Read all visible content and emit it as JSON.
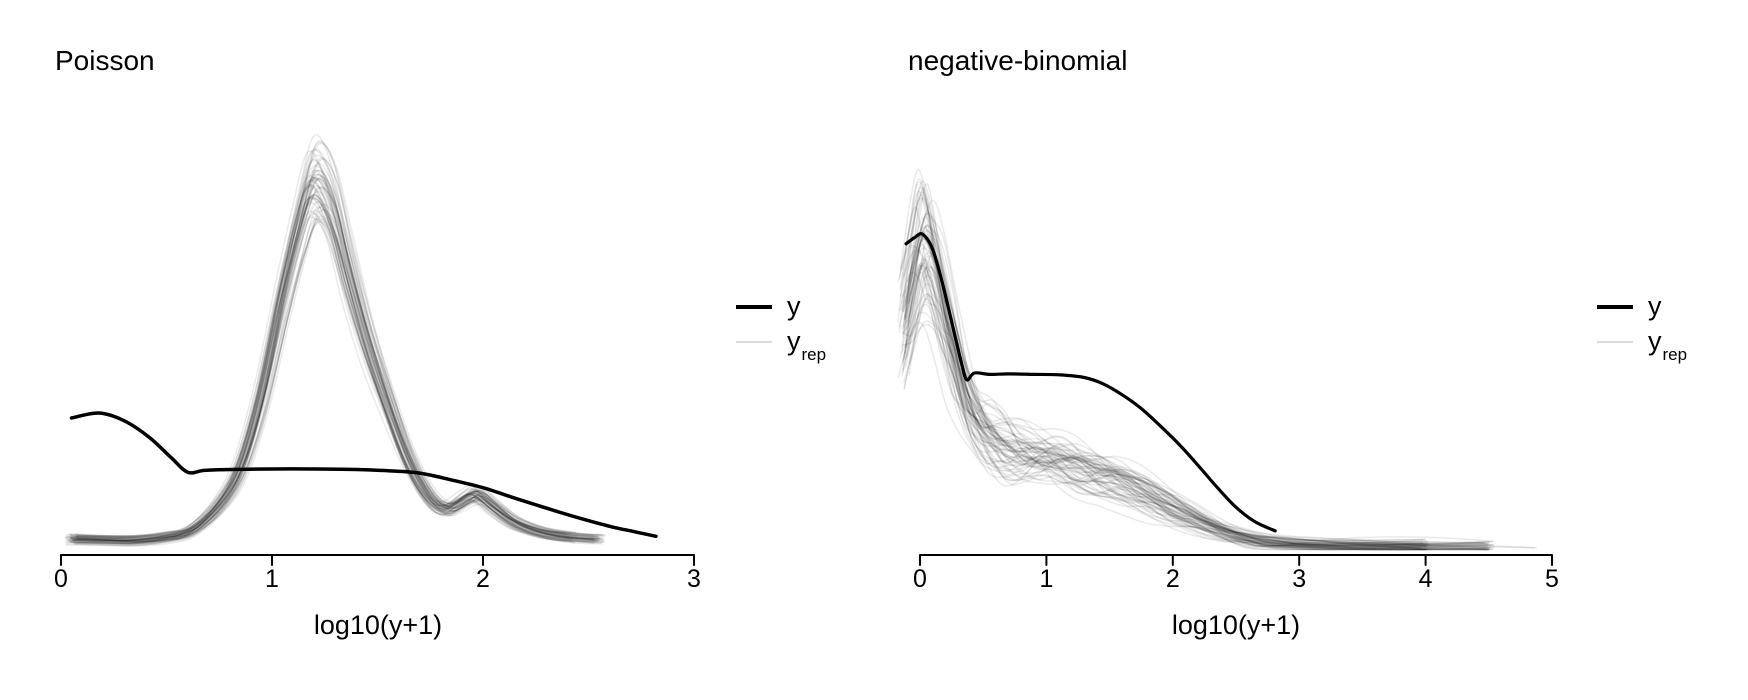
{
  "colors": {
    "y_line": "#000000",
    "yrep_line_alpha": "rgba(0,0,0,0.085)",
    "yrep_legend_swatch": "#d9d9d9",
    "axis": "#000000",
    "background": "#ffffff"
  },
  "legend": {
    "y_label": "y",
    "yrep_main": "y",
    "yrep_sub": "rep"
  },
  "chart_data": [
    {
      "type": "line",
      "panel": "left",
      "title": "Poisson",
      "xlabel": "log10(y+1)",
      "x_range": [
        0,
        3
      ],
      "x_ticks": [
        0,
        1,
        2,
        3
      ],
      "x_tick_labels": [
        "0",
        "1",
        "2",
        "3"
      ],
      "ylim": [
        0,
        1
      ],
      "y_axis_visible": false,
      "grid": false,
      "legend_position": "right",
      "legend_entries": [
        "y",
        "yrep"
      ],
      "series": [
        {
          "name": "y",
          "role": "observed",
          "color": "#000000",
          "width": 3.5,
          "points": [
            [
              0.05,
              0.301
            ],
            [
              0.18,
              0.312
            ],
            [
              0.3,
              0.295
            ],
            [
              0.42,
              0.258
            ],
            [
              0.52,
              0.215
            ],
            [
              0.6,
              0.182
            ],
            [
              0.68,
              0.186
            ],
            [
              0.8,
              0.188
            ],
            [
              1.0,
              0.189
            ],
            [
              1.2,
              0.189
            ],
            [
              1.4,
              0.188
            ],
            [
              1.55,
              0.185
            ],
            [
              1.7,
              0.18
            ],
            [
              1.85,
              0.165
            ],
            [
              2.0,
              0.148
            ],
            [
              2.15,
              0.125
            ],
            [
              2.3,
              0.103
            ],
            [
              2.45,
              0.082
            ],
            [
              2.6,
              0.063
            ],
            [
              2.72,
              0.051
            ],
            [
              2.82,
              0.041
            ]
          ]
        },
        {
          "name": "yrep",
          "role": "replicated",
          "n_draws": 60,
          "color": "rgba(0,0,0,0.085)",
          "width": 1.5,
          "points": [
            [
              0.05,
              0.036
            ],
            [
              0.2,
              0.034
            ],
            [
              0.35,
              0.033
            ],
            [
              0.5,
              0.04
            ],
            [
              0.62,
              0.055
            ],
            [
              0.75,
              0.11
            ],
            [
              0.85,
              0.19
            ],
            [
              0.95,
              0.345
            ],
            [
              1.05,
              0.56
            ],
            [
              1.13,
              0.715
            ],
            [
              1.2,
              0.81
            ],
            [
              1.28,
              0.76
            ],
            [
              1.36,
              0.62
            ],
            [
              1.45,
              0.47
            ],
            [
              1.55,
              0.33
            ],
            [
              1.65,
              0.205
            ],
            [
              1.75,
              0.125
            ],
            [
              1.83,
              0.102
            ],
            [
              1.9,
              0.118
            ],
            [
              1.97,
              0.133
            ],
            [
              2.05,
              0.106
            ],
            [
              2.15,
              0.072
            ],
            [
              2.28,
              0.05
            ],
            [
              2.42,
              0.04
            ],
            [
              2.55,
              0.036
            ]
          ]
        }
      ]
    },
    {
      "type": "line",
      "panel": "right",
      "title": "negative-binomial",
      "xlabel": "log10(y+1)",
      "x_range": [
        0,
        5
      ],
      "x_ticks": [
        0,
        1,
        2,
        3,
        4,
        5
      ],
      "x_tick_labels": [
        "0",
        "1",
        "2",
        "3",
        "4",
        "5"
      ],
      "ylim": [
        0,
        1
      ],
      "y_axis_visible": false,
      "grid": false,
      "legend_position": "right",
      "legend_entries": [
        "y",
        "yrep"
      ],
      "series": [
        {
          "name": "y",
          "role": "observed",
          "color": "#000000",
          "width": 3.2,
          "points": [
            [
              -0.11,
              0.684
            ],
            [
              -0.04,
              0.698
            ],
            [
              0.02,
              0.705
            ],
            [
              0.1,
              0.672
            ],
            [
              0.18,
              0.594
            ],
            [
              0.27,
              0.49
            ],
            [
              0.33,
              0.42
            ],
            [
              0.37,
              0.385
            ],
            [
              0.43,
              0.4
            ],
            [
              0.55,
              0.397
            ],
            [
              0.7,
              0.398
            ],
            [
              0.9,
              0.397
            ],
            [
              1.1,
              0.396
            ],
            [
              1.3,
              0.39
            ],
            [
              1.45,
              0.376
            ],
            [
              1.6,
              0.352
            ],
            [
              1.75,
              0.322
            ],
            [
              1.9,
              0.284
            ],
            [
              2.05,
              0.243
            ],
            [
              2.2,
              0.197
            ],
            [
              2.35,
              0.149
            ],
            [
              2.5,
              0.105
            ],
            [
              2.65,
              0.073
            ],
            [
              2.81,
              0.053
            ]
          ]
        },
        {
          "name": "yrep",
          "role": "replicated",
          "n_draws": 65,
          "color": "rgba(0,0,0,0.085)",
          "width": 1.5,
          "points": [
            [
              -0.13,
              0.5
            ],
            [
              -0.06,
              0.6
            ],
            [
              0.01,
              0.68
            ],
            [
              0.08,
              0.66
            ],
            [
              0.16,
              0.58
            ],
            [
              0.25,
              0.47
            ],
            [
              0.35,
              0.36
            ],
            [
              0.45,
              0.295
            ],
            [
              0.55,
              0.262
            ],
            [
              0.67,
              0.24
            ],
            [
              0.8,
              0.225
            ],
            [
              0.95,
              0.213
            ],
            [
              1.1,
              0.203
            ],
            [
              1.25,
              0.192
            ],
            [
              1.42,
              0.177
            ],
            [
              1.6,
              0.157
            ],
            [
              1.8,
              0.13
            ],
            [
              2.0,
              0.101
            ],
            [
              2.2,
              0.074
            ],
            [
              2.4,
              0.051
            ],
            [
              2.6,
              0.036
            ],
            [
              2.8,
              0.028
            ],
            [
              3.1,
              0.023
            ],
            [
              3.5,
              0.021
            ],
            [
              4.0,
              0.02
            ],
            [
              4.5,
              0.0195
            ],
            [
              4.9,
              0.019
            ]
          ]
        }
      ]
    }
  ]
}
